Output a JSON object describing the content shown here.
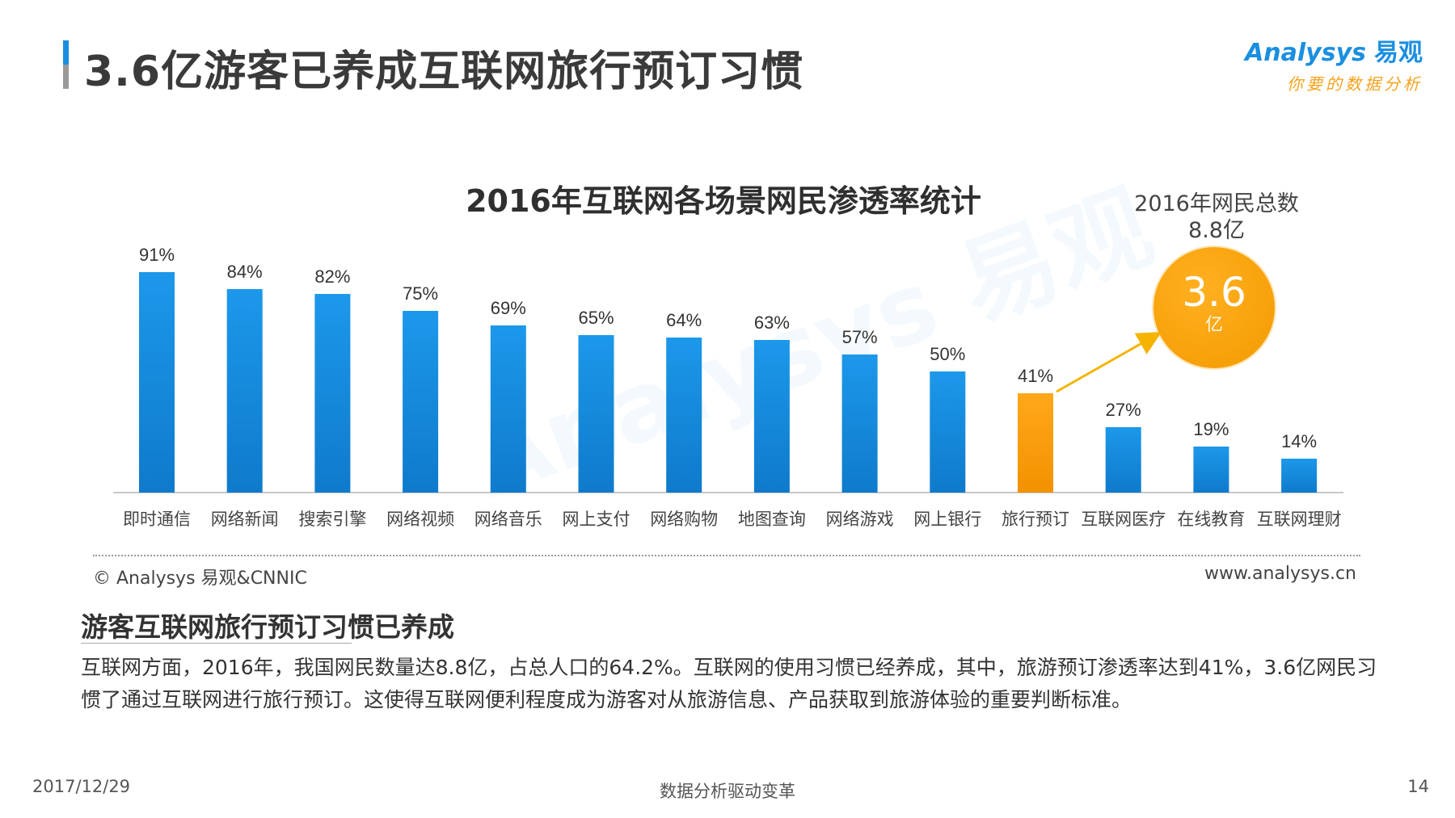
{
  "page": {
    "title": "3.6亿游客已养成互联网旅行预订习惯",
    "logo_brand": "Analysys",
    "logo_brand_cn": "易观",
    "logo_slogan": "你要的数据分析"
  },
  "chart_data": {
    "type": "bar",
    "title": "2016年互联网各场景网民渗透率统计",
    "categories": [
      "即时通信",
      "网络新闻",
      "搜索引擎",
      "网络视频",
      "网络音乐",
      "网上支付",
      "网络购物",
      "地图查询",
      "网络游戏",
      "网上银行",
      "旅行预订",
      "互联网医疗",
      "在线教育",
      "互联网理财"
    ],
    "values": [
      91,
      84,
      82,
      75,
      69,
      65,
      64,
      63,
      57,
      50,
      41,
      27,
      19,
      14
    ],
    "value_labels": [
      "91%",
      "84%",
      "82%",
      "75%",
      "69%",
      "65%",
      "64%",
      "63%",
      "57%",
      "50%",
      "41%",
      "27%",
      "19%",
      "14%"
    ],
    "highlight_index": 10,
    "ylim": [
      0,
      100
    ],
    "xlabel": "",
    "ylabel": "",
    "colors": {
      "default": "#1a8fe0",
      "highlight": "#f39a00",
      "arrow": "#f5b400"
    }
  },
  "callout": {
    "label": "2016年网民总数",
    "total": "8.8亿",
    "value": "3.6",
    "unit": "亿"
  },
  "source": "© Analysys 易观&CNNIC",
  "website": "www.analysys.cn",
  "section": {
    "heading": "游客互联网旅行预订习惯已养成",
    "body": "互联网方面，2016年，我国网民数量达8.8亿，占总人口的64.2%。互联网的使用习惯已经养成，其中，旅游预订渗透率达到41%，3.6亿网民习惯了通过互联网进行旅行预订。这使得互联网便利程度成为游客对从旅游信息、产品获取到旅游体验的重要判断标准。"
  },
  "footer": {
    "date": "2017/12/29",
    "slogan": "数据分析驱动变革",
    "page_number": "14"
  }
}
